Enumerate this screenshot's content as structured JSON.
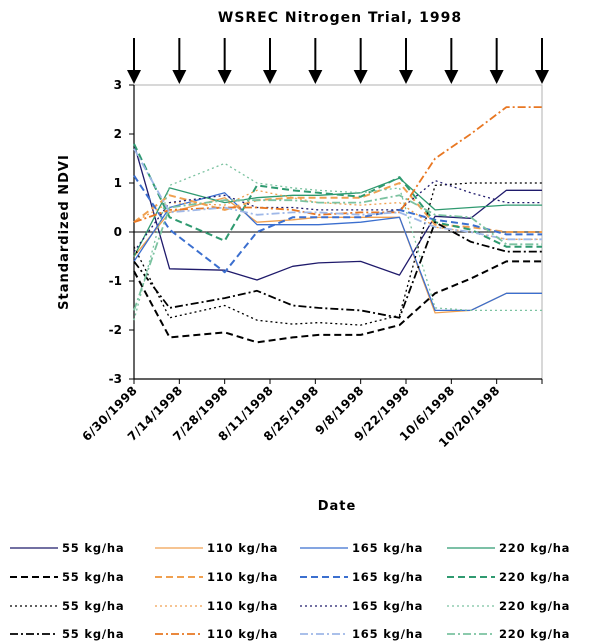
{
  "chart_data": {
    "type": "line",
    "title": "WSREC Nitrogen Trial, 1998",
    "xlabel": "Date",
    "ylabel": "Standardized NDVI",
    "ylim": [
      -3,
      3
    ],
    "yticks": [
      "3",
      "2",
      "1",
      "0",
      "-1",
      "-2",
      "-3"
    ],
    "categories": [
      "6/30/1998",
      "7/14/1998",
      "7/28/1998",
      "8/11/1998",
      "8/25/1998",
      "9/8/1998",
      "9/22/1998",
      "10/6/1998",
      "10/20/1998"
    ],
    "grid": false,
    "legend_position": "bottom",
    "fertilization_arrows": [
      "6/30/1998",
      "7/14/1998",
      "7/28/1998",
      "8/11/1998",
      "8/25/1998",
      "9/8/1998",
      "9/22/1998",
      "10/6/1998",
      "10/20/1998",
      "11/3/1998"
    ],
    "x": [
      "6/30/1998",
      "7/11/1998",
      "7/28/1998",
      "8/7/1998",
      "8/18/1998",
      "8/26/1998",
      "9/8/1998",
      "9/20/1998",
      "10/1/1998",
      "10/12/1998",
      "10/23/1998",
      "11/3/1998"
    ],
    "series": [
      {
        "name": "55 kg/ha",
        "color": "#1f1a6b",
        "dash": "solid",
        "values": [
          1.8,
          -0.75,
          -0.78,
          -0.98,
          -0.7,
          -0.63,
          -0.6,
          -0.88,
          0.32,
          0.28,
          0.85,
          0.85
        ]
      },
      {
        "name": "110 kg/ha",
        "color": "#f0a050",
        "dash": "solid",
        "values": [
          -0.5,
          0.4,
          0.7,
          0.2,
          0.25,
          0.3,
          0.3,
          0.3,
          -1.65,
          -1.6,
          -1.25,
          -1.25
        ]
      },
      {
        "name": "165 kg/ha",
        "color": "#3b6fcf",
        "dash": "solid",
        "values": [
          -0.6,
          0.5,
          0.8,
          0.15,
          0.15,
          0.15,
          0.2,
          0.3,
          -1.6,
          -1.6,
          -1.25,
          -1.25
        ]
      },
      {
        "name": "220 kg/ha",
        "color": "#2f9a70",
        "dash": "solid",
        "values": [
          -0.5,
          0.9,
          0.6,
          0.7,
          0.75,
          0.75,
          0.8,
          1.1,
          0.45,
          0.5,
          0.55,
          0.55
        ]
      },
      {
        "name": "55 kg/ha",
        "color": "#000000",
        "dash": "dash",
        "values": [
          -0.8,
          -2.15,
          -2.05,
          -2.25,
          -2.15,
          -2.1,
          -2.1,
          -1.9,
          -1.25,
          -0.95,
          -0.6,
          -0.6
        ]
      },
      {
        "name": "110 kg/ha",
        "color": "#f0a050",
        "dash": "dash",
        "values": [
          0.2,
          0.75,
          0.45,
          0.65,
          0.7,
          0.7,
          0.7,
          1.0,
          0.15,
          0.1,
          0.0,
          0.0
        ]
      },
      {
        "name": "165 kg/ha",
        "color": "#3b6fcf",
        "dash": "dash",
        "values": [
          1.15,
          0.05,
          -0.82,
          0.0,
          0.3,
          0.3,
          0.3,
          0.45,
          0.25,
          0.15,
          -0.05,
          -0.05
        ]
      },
      {
        "name": "220 kg/ha",
        "color": "#2f9a70",
        "dash": "dash",
        "values": [
          1.8,
          0.3,
          -0.18,
          0.95,
          0.85,
          0.8,
          0.72,
          1.12,
          0.2,
          0.05,
          -0.3,
          -0.3
        ]
      },
      {
        "name": "55 kg/ha",
        "color": "#000000",
        "dash": "dot",
        "values": [
          -0.3,
          -1.75,
          -1.5,
          -1.8,
          -1.88,
          -1.85,
          -1.9,
          -1.7,
          0.95,
          1.0,
          1.0,
          1.0
        ]
      },
      {
        "name": "110 kg/ha",
        "color": "#f0a050",
        "dash": "dot",
        "values": [
          0.2,
          0.6,
          0.55,
          0.85,
          0.7,
          0.6,
          0.55,
          0.6,
          0.1,
          0.0,
          -0.15,
          -0.15
        ]
      },
      {
        "name": "165 kg/ha",
        "color": "#1f1a6b",
        "dash": "dot",
        "values": [
          -0.4,
          0.6,
          0.75,
          0.5,
          0.5,
          0.45,
          0.45,
          0.45,
          1.05,
          0.8,
          0.6,
          0.6
        ]
      },
      {
        "name": "220 kg/ha",
        "color": "#7bc2a0",
        "dash": "dot",
        "values": [
          -1.8,
          0.95,
          1.4,
          1.0,
          0.9,
          0.85,
          0.8,
          0.9,
          -1.55,
          -1.6,
          -1.6,
          -1.6
        ]
      },
      {
        "name": "55 kg/ha",
        "color": "#000000",
        "dash": "dashdot",
        "values": [
          -0.6,
          -1.55,
          -1.35,
          -1.2,
          -1.5,
          -1.55,
          -1.6,
          -1.75,
          0.2,
          -0.2,
          -0.4,
          -0.4
        ]
      },
      {
        "name": "110 kg/ha",
        "color": "#e87722",
        "dash": "dashdot",
        "values": [
          0.2,
          0.45,
          0.5,
          0.5,
          0.45,
          0.35,
          0.4,
          0.4,
          1.5,
          2.0,
          2.55,
          2.55
        ]
      },
      {
        "name": "165 kg/ha",
        "color": "#9fb8e8",
        "dash": "dashdot",
        "values": [
          1.7,
          0.4,
          0.5,
          0.35,
          0.4,
          0.4,
          0.35,
          0.4,
          0.1,
          0.0,
          -0.15,
          -0.15
        ]
      },
      {
        "name": "220 kg/ha",
        "color": "#7bc2a0",
        "dash": "dashdot",
        "values": [
          -1.6,
          0.5,
          0.65,
          0.65,
          0.65,
          0.6,
          0.6,
          0.75,
          0.35,
          0.3,
          -0.25,
          -0.25
        ]
      }
    ]
  }
}
